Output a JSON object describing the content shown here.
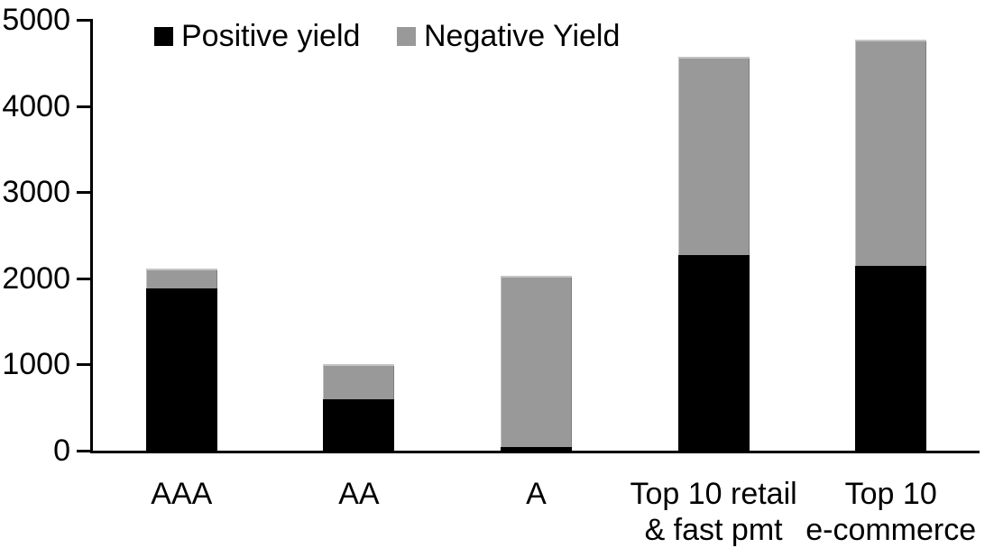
{
  "chart_data": {
    "type": "bar",
    "stacked": true,
    "title": "",
    "xlabel": "",
    "ylabel": "",
    "background_color": "#ffffff",
    "axis_color": "#000000",
    "grid": false,
    "legend_position": "top",
    "ylim": [
      0,
      5000
    ],
    "ytick_step": 1000,
    "ytick_labels": [
      "0",
      "1000",
      "2000",
      "3000",
      "4000",
      "5000"
    ],
    "categories": [
      {
        "id": "aaa",
        "lines": [
          "AAA"
        ]
      },
      {
        "id": "aa",
        "lines": [
          "AA"
        ]
      },
      {
        "id": "a",
        "lines": [
          "A"
        ]
      },
      {
        "id": "top10-retail-fastpmt",
        "lines": [
          "Top 10 retail",
          "& fast pmt"
        ]
      },
      {
        "id": "top10-ecommerce",
        "lines": [
          "Top 10",
          "e-commerce"
        ]
      }
    ],
    "series": [
      {
        "name": "Positive yield",
        "color": "#000000",
        "values": [
          1880,
          600,
          40,
          2270,
          2140
        ]
      },
      {
        "name": "Negative Yield",
        "color": "#999999",
        "values": [
          230,
          400,
          1990,
          2300,
          2630
        ]
      }
    ],
    "totals": [
      2110,
      1000,
      2030,
      4570,
      4770
    ]
  },
  "legend": {
    "items": [
      {
        "label": "Positive yield",
        "color": "#000000"
      },
      {
        "label": "Negative Yield",
        "color": "#999999"
      }
    ]
  }
}
